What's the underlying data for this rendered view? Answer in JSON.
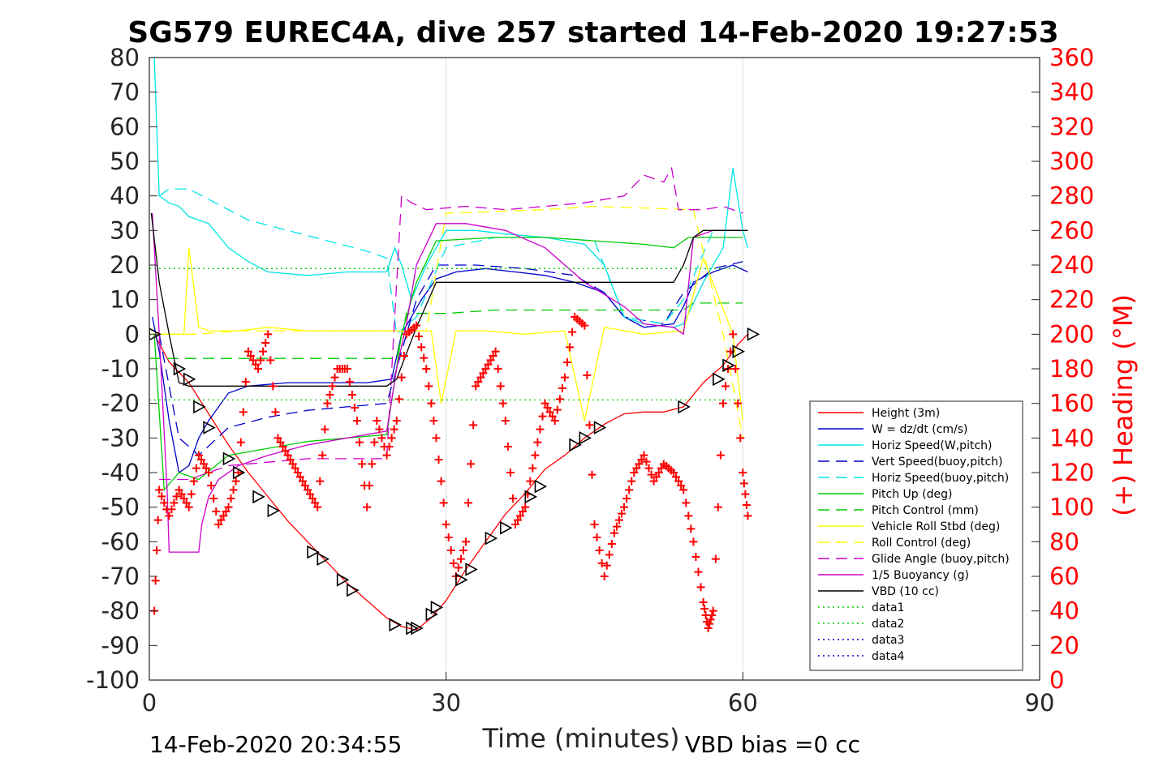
{
  "chart_data": {
    "type": "line",
    "title": "SG579 EUREC4A, dive 257 started 14-Feb-2020 19:27:53",
    "xlabel": "Time (minutes)",
    "ylabel_right": "(+) Heading (°M)",
    "footer_left": "14-Feb-2020 20:34:55",
    "footer_right": "VBD bias =0 cc",
    "xlim": [
      0,
      90
    ],
    "ylim": [
      -100,
      80
    ],
    "ylim_right": [
      0,
      360
    ],
    "x_ticks": [
      "0",
      "30",
      "60",
      "90"
    ],
    "y_ticks": [
      "80",
      "70",
      "60",
      "50",
      "40",
      "30",
      "20",
      "10",
      "0",
      "-10",
      "-20",
      "-30",
      "-40",
      "-50",
      "-60",
      "-70",
      "-80",
      "-90",
      "-100"
    ],
    "y_ticks_right": [
      "360",
      "340",
      "320",
      "300",
      "280",
      "260",
      "240",
      "220",
      "200",
      "180",
      "160",
      "140",
      "120",
      "100",
      "80",
      "60",
      "40",
      "20",
      "0"
    ],
    "grid": true,
    "legend_position": "lower-right",
    "colors": {
      "axis": "#262626",
      "right_axis": "#ff0000"
    },
    "legend": [
      {
        "label": "Height (3m)",
        "color": "#ff0000",
        "dash": "solid"
      },
      {
        "label": "W = dz/dt (cm/s)",
        "color": "#0000cc",
        "dash": "solid"
      },
      {
        "label": "Horiz Speed(W,pitch)",
        "color": "#00e5e5",
        "dash": "solid"
      },
      {
        "label": "Vert Speed(buoy,pitch)",
        "color": "#0000cc",
        "dash": "dashed"
      },
      {
        "label": "Horiz Speed(buoy,pitch)",
        "color": "#00e5e5",
        "dash": "dashed"
      },
      {
        "label": "Pitch Up (deg)",
        "color": "#00cc00",
        "dash": "solid"
      },
      {
        "label": "Pitch Control (mm)",
        "color": "#00cc00",
        "dash": "dashed"
      },
      {
        "label": "Vehicle Roll Stbd (deg)",
        "color": "#ffff00",
        "dash": "solid"
      },
      {
        "label": "Roll Control (deg)",
        "color": "#ffff00",
        "dash": "dashed"
      },
      {
        "label": "Glide Angle (buoy,pitch)",
        "color": "#cc00cc",
        "dash": "dashed"
      },
      {
        "label": "1/5 Buoyancy (g)",
        "color": "#cc00cc",
        "dash": "solid"
      },
      {
        "label": "VBD (10 cc)",
        "color": "#000000",
        "dash": "solid"
      },
      {
        "label": "data1",
        "color": "#00cc00",
        "dash": "dotted"
      },
      {
        "label": "data2",
        "color": "#00cc00",
        "dash": "dotted"
      },
      {
        "label": "data3",
        "color": "#0000cc",
        "dash": "dotted"
      },
      {
        "label": "data4",
        "color": "#0000cc",
        "dash": "dotted"
      }
    ],
    "series": [
      {
        "name": "Height (3m)",
        "x": [
          0.5,
          2,
          4,
          6,
          8,
          10,
          12,
          14,
          16,
          18,
          20,
          22,
          24,
          25.5,
          27,
          28.5,
          30,
          32,
          34,
          36,
          38,
          40,
          42,
          44,
          46,
          48,
          50,
          52,
          54,
          56,
          58,
          59.5,
          60.5
        ],
        "y": [
          0,
          -8,
          -14,
          -23,
          -32,
          -40,
          -47,
          -54,
          -60,
          -66,
          -72,
          -77,
          -82,
          -84.5,
          -85.5,
          -82,
          -77,
          -68,
          -60,
          -52,
          -46,
          -39,
          -35,
          -30,
          -26,
          -23,
          -22.5,
          -22.5,
          -21,
          -14,
          -9,
          -3,
          0
        ]
      },
      {
        "name": "W = dz/dt (cm/s)",
        "x": [
          0.3,
          1,
          2,
          3,
          4,
          5,
          6,
          8,
          10,
          14,
          18,
          22,
          24.5,
          25.5,
          26.5,
          27.5,
          29,
          31,
          34,
          37,
          40,
          43,
          46,
          48,
          50,
          53,
          54,
          55,
          57,
          59,
          60.5
        ],
        "y": [
          5,
          -5,
          -25,
          -40,
          -38,
          -30,
          -25,
          -17,
          -15,
          -14,
          -14,
          -14,
          -13,
          0,
          5,
          10,
          16,
          18,
          19,
          18,
          17,
          15,
          12,
          5,
          2,
          3,
          8,
          15,
          18,
          20,
          18
        ]
      },
      {
        "name": "Horiz Speed(W,pitch)",
        "x": [
          0.5,
          1,
          2,
          3,
          4,
          6,
          8,
          10,
          12,
          16,
          20,
          24,
          24.8,
          25.5,
          26.5,
          28,
          30,
          33,
          36,
          40,
          44,
          46,
          48,
          50,
          53,
          54,
          56,
          58,
          59,
          60,
          60.5
        ],
        "y": [
          80,
          40,
          38,
          37,
          34,
          32,
          25,
          21,
          18,
          17,
          18,
          18,
          25,
          20,
          10,
          20,
          30,
          30,
          29,
          28,
          26,
          20,
          5,
          3,
          2,
          3,
          15,
          25,
          48,
          30,
          25
        ]
      },
      {
        "name": "Vert Speed(buoy,pitch)",
        "x": [
          1,
          3,
          5,
          8,
          12,
          16,
          20,
          24,
          25,
          27,
          29,
          33,
          38,
          43,
          46,
          48,
          52,
          54,
          57,
          60
        ],
        "y": [
          0,
          -30,
          -35,
          -27,
          -24,
          -22,
          -21,
          -20,
          -10,
          10,
          20,
          20,
          19,
          17,
          12,
          5,
          3,
          12,
          19,
          21
        ]
      },
      {
        "name": "Horiz Speed(buoy,pitch)",
        "x": [
          1,
          2,
          4,
          6,
          10,
          14,
          18,
          22,
          24,
          25,
          27,
          30,
          35,
          40,
          45,
          48,
          52,
          54,
          57,
          60
        ],
        "y": [
          40,
          42,
          42,
          39,
          33,
          30,
          27,
          24,
          22,
          0,
          5,
          25,
          28,
          28,
          27,
          5,
          3,
          10,
          30,
          30
        ]
      },
      {
        "name": "Pitch Up (deg)",
        "x": [
          0.5,
          1.5,
          3,
          5,
          8,
          12,
          16,
          20,
          24,
          25.5,
          27,
          29,
          35,
          40,
          45,
          50,
          53,
          54.5,
          57,
          60
        ],
        "y": [
          0,
          -45,
          -40,
          -42,
          -35,
          -33,
          -31,
          -30,
          -29,
          0,
          15,
          27,
          28,
          28,
          27,
          26,
          25,
          28,
          28,
          28
        ]
      },
      {
        "name": "Pitch Control (mm)",
        "x": [
          0,
          4,
          25,
          26,
          30,
          35,
          40,
          54,
          55,
          60
        ],
        "y": [
          -7,
          -7,
          -7,
          6,
          6,
          7,
          7,
          7,
          9,
          9
        ]
      },
      {
        "name": "Vehicle Roll Stbd (deg)",
        "x": [
          1,
          3.5,
          4,
          5,
          6,
          9,
          12,
          16,
          20,
          24,
          28.5,
          29.5,
          31,
          34,
          38,
          42,
          44,
          46,
          50,
          54,
          56,
          59,
          60
        ],
        "y": [
          0,
          0,
          25,
          2,
          1,
          1,
          2,
          1,
          1,
          1,
          1,
          -20,
          1,
          1,
          0,
          1,
          -25,
          2,
          0,
          1,
          22,
          0,
          -25
        ]
      },
      {
        "name": "Roll Control (deg)",
        "x": [
          0,
          5,
          9,
          12,
          15,
          18,
          22,
          28,
          30,
          40,
          45,
          55,
          58,
          60
        ],
        "y": [
          0,
          0,
          1,
          1,
          1,
          1,
          1,
          1,
          35,
          36,
          37,
          36,
          0,
          -30
        ]
      },
      {
        "name": "Glide Angle (buoy,pitch)",
        "x": [
          1,
          4,
          6,
          8,
          12,
          16,
          20,
          24,
          25.5,
          26.5,
          28,
          32,
          36,
          40,
          44,
          48,
          50,
          52,
          52.8,
          53.5,
          56,
          58,
          60
        ],
        "y": [
          -42,
          -42,
          -40,
          -38,
          -37,
          -36,
          -36,
          -36,
          40,
          38,
          36,
          37,
          36,
          37,
          38,
          40,
          46,
          44,
          48,
          36,
          36,
          37,
          35
        ]
      },
      {
        "name": "1/5 Buoyancy (g)",
        "x": [
          0.3,
          1,
          1.8,
          2,
          5,
          5.3,
          6,
          7,
          9,
          12,
          16,
          20,
          24,
          25,
          26,
          27,
          29,
          32,
          36,
          40,
          44,
          48,
          50,
          53,
          54,
          55,
          57,
          59,
          60
        ],
        "y": [
          35,
          0,
          -45,
          -63,
          -63,
          -55,
          -47,
          -42,
          -38,
          -35,
          -32,
          -30,
          -28,
          -10,
          3,
          20,
          32,
          32,
          30,
          25,
          15,
          8,
          3,
          2,
          0,
          28,
          30,
          30,
          30
        ]
      },
      {
        "name": "VBD (10 cc)",
        "x": [
          0.2,
          1,
          2,
          3,
          4,
          24,
          25,
          27,
          29,
          30,
          53,
          54,
          55,
          56,
          60.5
        ],
        "y": [
          35,
          15,
          0,
          -14,
          -15,
          -15,
          -13,
          2,
          15,
          15,
          15,
          20,
          28,
          30,
          30
        ]
      },
      {
        "name": "data1",
        "x": [
          0,
          60
        ],
        "y": [
          19,
          19
        ]
      },
      {
        "name": "data2",
        "x": [
          0,
          60
        ],
        "y": [
          -19,
          -19
        ]
      },
      {
        "name": "(+) Heading (°M)",
        "axis": "right",
        "x": [
          0.5,
          1,
          2,
          3,
          4,
          5,
          6,
          7,
          8,
          9,
          10,
          11,
          12,
          13,
          14,
          15,
          16,
          17,
          18,
          19,
          20,
          21,
          22,
          23,
          24,
          25,
          26,
          27,
          28,
          29,
          30,
          31,
          32,
          33,
          34,
          35,
          36,
          37,
          38,
          39,
          40,
          41,
          42,
          43,
          44,
          45,
          46,
          47,
          48,
          49,
          50,
          51,
          52,
          53,
          54,
          55,
          56,
          56.5,
          57,
          58,
          59,
          60,
          60.5
        ],
        "y": [
          40,
          110,
          95,
          110,
          100,
          130,
          120,
          90,
          100,
          120,
          190,
          180,
          200,
          140,
          130,
          120,
          110,
          100,
          160,
          180,
          180,
          150,
          100,
          150,
          130,
          150,
          200,
          205,
          180,
          140,
          90,
          60,
          80,
          170,
          180,
          190,
          150,
          90,
          100,
          130,
          160,
          150,
          175,
          210,
          205,
          90,
          60,
          85,
          100,
          120,
          130,
          115,
          125,
          120,
          110,
          80,
          45,
          30,
          40,
          160,
          200,
          120,
          95
        ]
      }
    ],
    "dive_markers": {
      "name": "depth-markers",
      "x": [
        0.5,
        3,
        4,
        5,
        6,
        8,
        9,
        11,
        12.5,
        16.5,
        17.5,
        19.5,
        20.5,
        24.8,
        26.5,
        27,
        28.5,
        29,
        31.5,
        32.5,
        34.5,
        36,
        38.5,
        39.5,
        43,
        44,
        45.5,
        54,
        57.5,
        58.5,
        59.5,
        61
      ],
      "y": [
        0,
        -10,
        -13,
        -21,
        -27,
        -36,
        -40,
        -47,
        -51,
        -63,
        -65,
        -71,
        -74,
        -84,
        -85,
        -85,
        -81,
        -79,
        -71,
        -68,
        -59,
        -56,
        -47,
        -44,
        -32,
        -30,
        -27,
        -21,
        -13,
        -9,
        -5,
        0
      ]
    }
  }
}
